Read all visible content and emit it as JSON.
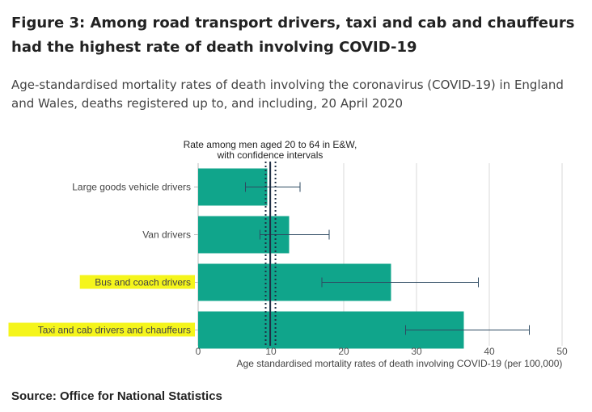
{
  "header": {
    "title": "Figure 3: Among road transport drivers, taxi and cab and chauffeurs had the highest rate of death involving COVID-19",
    "subtitle": "Age-standardised mortality rates of death involving the coronavirus (COVID-19) in England and Wales, deaths registered up to, and including, 20 April 2020"
  },
  "footer": {
    "source": "Source: Office for National Statistics"
  },
  "colors": {
    "bar": "#10a58b",
    "highlight": "#f5f51b",
    "grid": "#d9d9d9",
    "errorbar": "#2e4a62",
    "reference": "#1f2f45"
  },
  "chart_data": {
    "type": "bar",
    "orientation": "horizontal",
    "title": "Figure 3: Among road transport drivers, taxi and cab and chauffeurs had the highest rate of death involving COVID-19",
    "xlabel": "Age standardised mortality rates of death involving COVID-19 (per 100,000)",
    "ylabel": "",
    "xlim": [
      0,
      50
    ],
    "xticks": [
      0,
      10,
      20,
      30,
      40,
      50
    ],
    "grid": true,
    "categories": [
      "Large goods vehicle drivers",
      "Van drivers",
      "Bus and coach drivers",
      "Taxi and cab drivers and chauffeurs"
    ],
    "highlighted": [
      false,
      false,
      true,
      true
    ],
    "values": [
      9.5,
      12.5,
      26.5,
      36.5
    ],
    "ci_lower": [
      6.5,
      8.5,
      17.0,
      28.5
    ],
    "ci_upper": [
      14.0,
      18.0,
      38.5,
      45.5
    ],
    "reference": {
      "label_line1": "Rate among men aged 20 to 64 in E&W,",
      "label_line2": "with confidence intervals",
      "value": 9.9,
      "ci_lower": 9.5,
      "ci_upper": 10.4
    }
  }
}
